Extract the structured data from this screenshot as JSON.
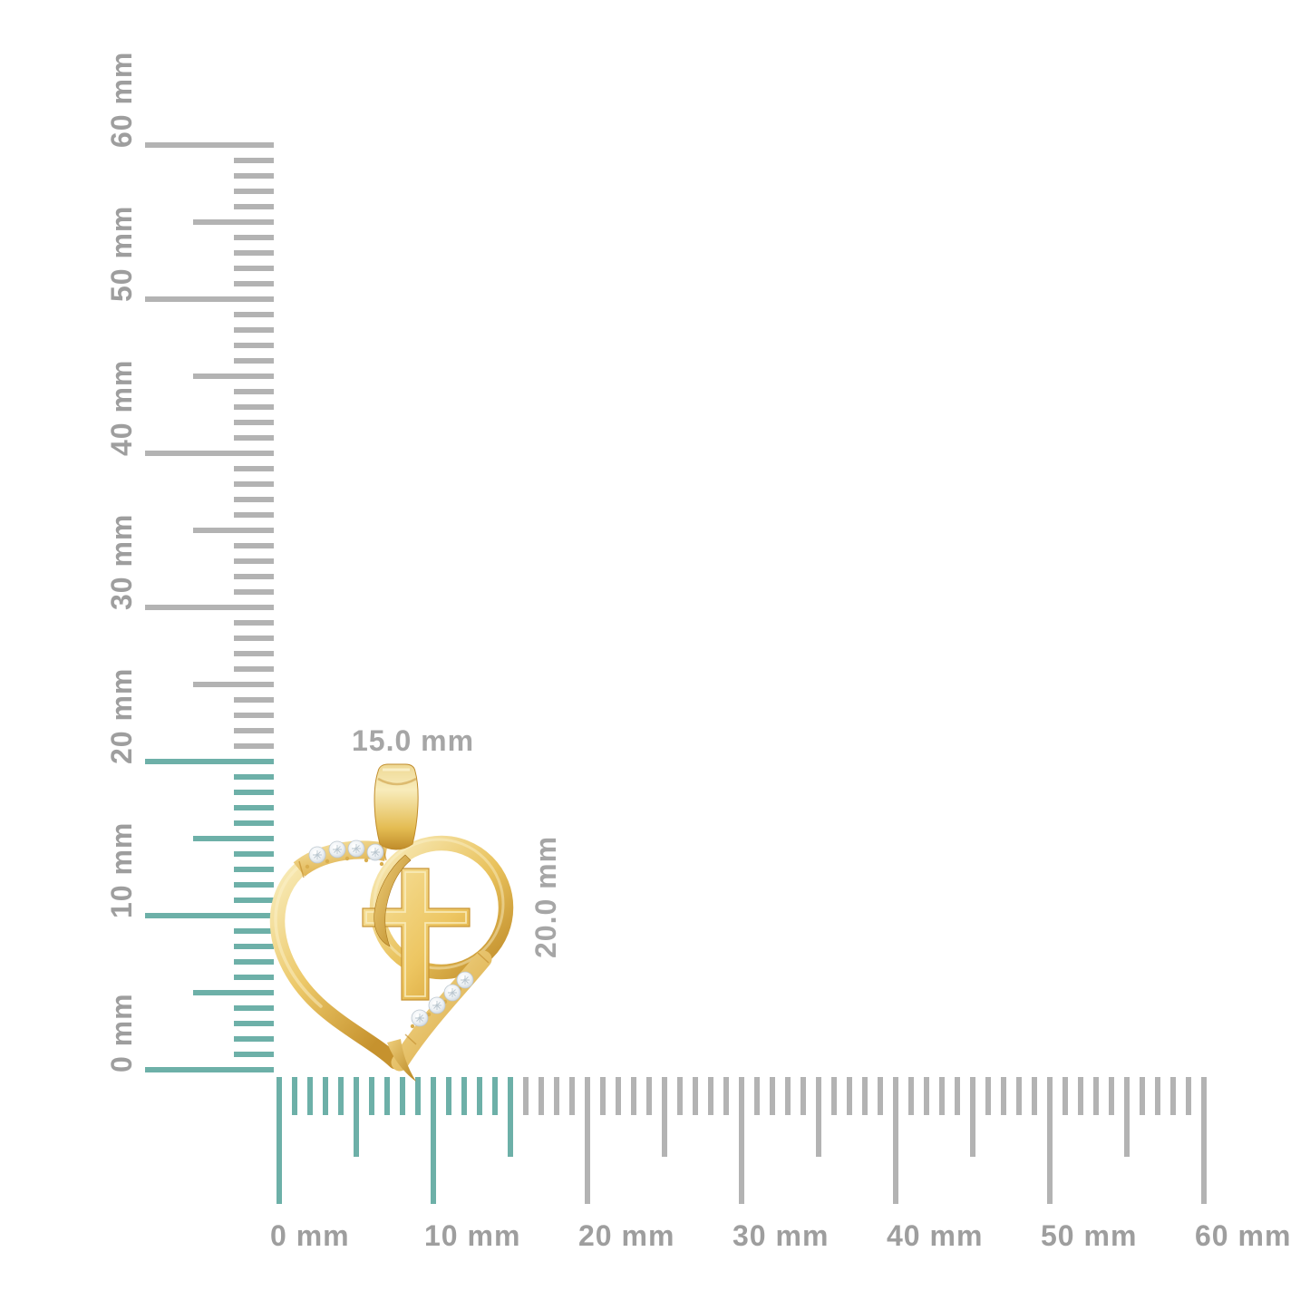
{
  "product": {
    "width_label": "15.0 mm",
    "height_label": "20.0 mm",
    "upper_diamond_count": 4,
    "lower_diamond_count": 4
  },
  "rulers": {
    "unit": "mm",
    "vertical": {
      "labels": [
        "0 mm",
        "10 mm",
        "20 mm",
        "30 mm",
        "40 mm",
        "50 mm",
        "60 mm"
      ],
      "teal_up_to_mm": 20
    },
    "horizontal": {
      "labels": [
        "0 mm",
        "10 mm",
        "20 mm",
        "30 mm",
        "40 mm",
        "50 mm",
        "60 mm"
      ],
      "teal_up_to_mm": 15
    }
  },
  "colors": {
    "background": "#FFFFFF",
    "teal": "#6DB0A8",
    "tick_gray": "#B3B3B3",
    "ruler_label_gray": "#9E9E9E",
    "dimension_label_gray": "#A6A6A6",
    "gold_mid": "#ECC868",
    "gold_light": "#F8ECBB",
    "gold_dark": "#C6922E",
    "diamond": "#EEF2F5"
  }
}
